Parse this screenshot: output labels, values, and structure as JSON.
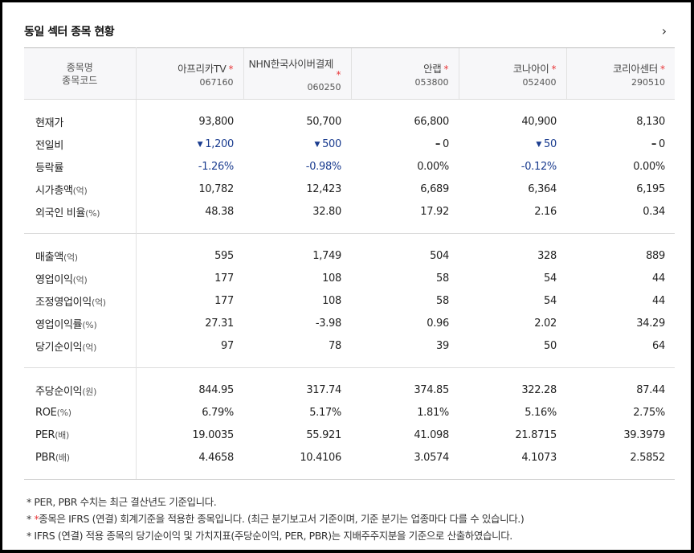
{
  "header": {
    "title": "동일 섹터 종목 현황",
    "more_icon": "chevron-right-icon"
  },
  "table": {
    "name_header": {
      "line1": "종목명",
      "line2": "종목코드"
    },
    "companies": [
      {
        "name": "아프리카TV",
        "star": "*",
        "code": "067160"
      },
      {
        "name": "NHN한국사이버결제",
        "star": "*",
        "code": "060250"
      },
      {
        "name": "안랩",
        "star": "*",
        "code": "053800"
      },
      {
        "name": "코나아이",
        "star": "*",
        "code": "052400"
      },
      {
        "name": "코리아센터",
        "star": "*",
        "code": "290510"
      }
    ],
    "rows": [
      {
        "label": "현재가",
        "unit": "",
        "values": [
          "93,800",
          "50,700",
          "66,800",
          "40,900",
          "8,130"
        ]
      },
      {
        "label": "전일비",
        "unit": "",
        "values": [
          "1,200",
          "500",
          "0",
          "50",
          "0"
        ],
        "dirs": [
          "down",
          "down",
          "flat",
          "down",
          "flat"
        ]
      },
      {
        "label": "등락률",
        "unit": "",
        "values": [
          "-1.26%",
          "-0.98%",
          "0.00%",
          "-0.12%",
          "0.00%"
        ],
        "dirs": [
          "down",
          "down",
          "flat",
          "down",
          "flat"
        ]
      },
      {
        "label": "시가총액",
        "unit": "(억)",
        "values": [
          "10,782",
          "12,423",
          "6,689",
          "6,364",
          "6,195"
        ]
      },
      {
        "label": "외국인 비율",
        "unit": "(%)",
        "values": [
          "48.38",
          "32.80",
          "17.92",
          "2.16",
          "0.34"
        ]
      },
      {
        "label": "매출액",
        "unit": "(억)",
        "values": [
          "595",
          "1,749",
          "504",
          "328",
          "889"
        ]
      },
      {
        "label": "영업이익",
        "unit": "(억)",
        "values": [
          "177",
          "108",
          "58",
          "54",
          "44"
        ]
      },
      {
        "label": "조정영업이익",
        "unit": "(억)",
        "values": [
          "177",
          "108",
          "58",
          "54",
          "44"
        ]
      },
      {
        "label": "영업이익률",
        "unit": "(%)",
        "values": [
          "27.31",
          "-3.98",
          "0.96",
          "2.02",
          "34.29"
        ]
      },
      {
        "label": "당기순이익",
        "unit": "(억)",
        "values": [
          "97",
          "78",
          "39",
          "50",
          "64"
        ]
      },
      {
        "label": "주당순이익",
        "unit": "(원)",
        "values": [
          "844.95",
          "317.74",
          "374.85",
          "322.28",
          "87.44"
        ]
      },
      {
        "label": "ROE",
        "unit": "(%)",
        "values": [
          "6.79%",
          "5.17%",
          "1.81%",
          "5.16%",
          "2.75%"
        ]
      },
      {
        "label": "PER",
        "unit": "(배)",
        "values": [
          "19.0035",
          "55.921",
          "41.098",
          "21.8715",
          "39.3979"
        ]
      },
      {
        "label": "PBR",
        "unit": "(배)",
        "values": [
          "4.4658",
          "10.4106",
          "3.0574",
          "4.1073",
          "2.5852"
        ]
      }
    ]
  },
  "notes": {
    "line1": "* PER, PBR 수치는 최근 결산년도 기준입니다.",
    "line2_prefix": "* ",
    "line2_red": "*",
    "line2_rest": "종목은 IFRS (연결) 회계기준을 적용한 종목입니다. (최근 분기보고서 기준이며, 기준 분기는 업종마다 다를 수 있습니다.)",
    "line3": "* IFRS (연결) 적용 종목의 당기순이익 및 가치지표(주당순이익, PER, PBR)는 지배주주지분을 기준으로 산출하였습니다."
  },
  "colors": {
    "down": "#1a3c8f",
    "star": "#e8373a",
    "header_bg": "#f7f7f9"
  }
}
